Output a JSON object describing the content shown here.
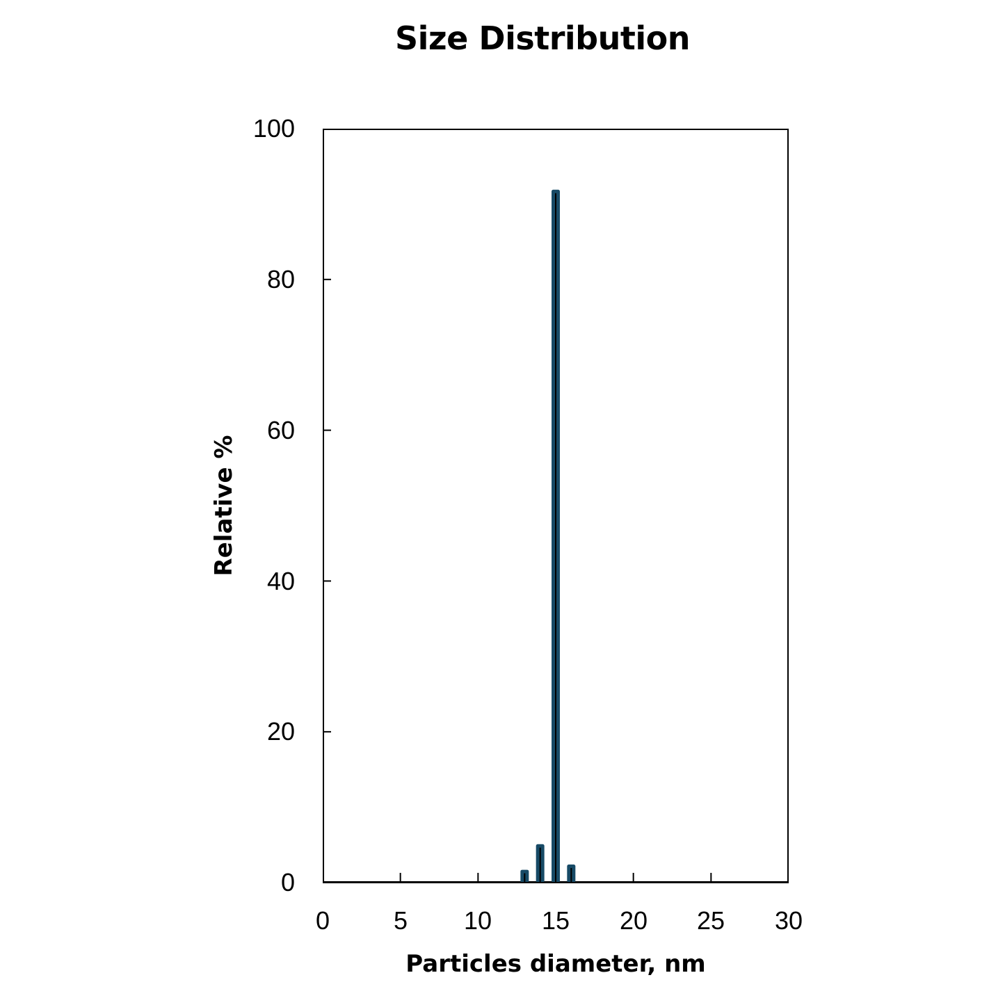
{
  "chart_data": {
    "type": "bar",
    "title": "Size Distribution",
    "xlabel": "Particles diameter, nm",
    "ylabel": "Relative %",
    "x": [
      13,
      14,
      15,
      16
    ],
    "values": [
      1.7,
      5.1,
      91.9,
      2.4
    ],
    "xlim": [
      0,
      30
    ],
    "ylim": [
      0,
      100
    ],
    "xticks": [
      0,
      5,
      10,
      15,
      20,
      25,
      30
    ],
    "yticks": [
      0,
      20,
      40,
      60,
      80,
      100
    ],
    "grid": false,
    "legend": null,
    "bar_color": "#174a66",
    "error_line_color": "#000000"
  },
  "labels": {
    "title": "Size Distribution",
    "xlabel": "Particles diameter, nm",
    "ylabel": "Relative %",
    "xticks": [
      "0",
      "5",
      "10",
      "15",
      "20",
      "25",
      "30"
    ],
    "yticks": [
      "0",
      "20",
      "40",
      "60",
      "80",
      "100"
    ]
  }
}
